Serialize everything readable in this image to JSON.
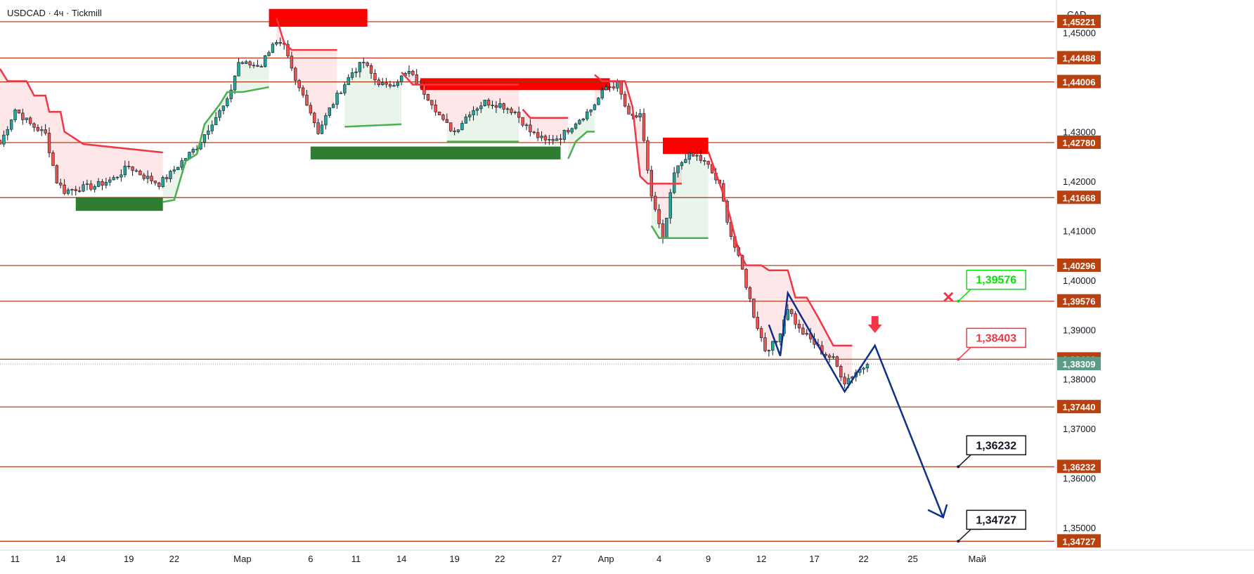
{
  "chart_data": {
    "type": "candlestick",
    "title": "USDCAD · 4ч · Tickmill",
    "currency_label": "CAD",
    "colors": {
      "up": "#26a69a",
      "down": "#ef5350",
      "wick": "#131722",
      "level_line": "#b02e0c",
      "level_label_bg": "#b8410f",
      "supertrend_down": "#f23645",
      "supertrend_up": "#4caf50",
      "zone_red": "#ff0000",
      "zone_green": "#2e7d32",
      "projection": "#0d2e8c",
      "current_price_bg": "#5b9c84",
      "callout_green": "#00e600",
      "callout_red": "#f23645",
      "callout_black": "#131722"
    },
    "y_axis": {
      "range": [
        1.3459,
        1.4566
      ],
      "ticks": [
        "1,35000",
        "1,36000",
        "1,37000",
        "1,38000",
        "1,39000",
        "1,40000",
        "1,41000",
        "1,42000",
        "1,43000",
        "1,44000",
        "1,45000"
      ]
    },
    "x_axis": {
      "ticks": [
        {
          "label": "11",
          "idx": 4
        },
        {
          "label": "14",
          "idx": 16
        },
        {
          "label": "19",
          "idx": 34
        },
        {
          "label": "22",
          "idx": 46
        },
        {
          "label": "Мар",
          "idx": 64
        },
        {
          "label": "6",
          "idx": 82
        },
        {
          "label": "11",
          "idx": 94
        },
        {
          "label": "14",
          "idx": 106
        },
        {
          "label": "19",
          "idx": 120
        },
        {
          "label": "22",
          "idx": 132
        },
        {
          "label": "27",
          "idx": 147
        },
        {
          "label": "Апр",
          "idx": 160
        },
        {
          "label": "4",
          "idx": 174
        },
        {
          "label": "9",
          "idx": 187
        },
        {
          "label": "12",
          "idx": 201
        },
        {
          "label": "17",
          "idx": 215
        },
        {
          "label": "22",
          "idx": 228
        },
        {
          "label": "25",
          "idx": 241
        },
        {
          "label": "Май",
          "idx": 258
        }
      ],
      "visible_bars": [
        0,
        278
      ]
    },
    "levels": [
      {
        "label": "1,45221",
        "value": 1.45221
      },
      {
        "label": "1,44488",
        "value": 1.44488
      },
      {
        "label": "1,44006",
        "value": 1.44006
      },
      {
        "label": "1,42780",
        "value": 1.4278
      },
      {
        "label": "1,41668",
        "value": 1.41668
      },
      {
        "label": "1,40296",
        "value": 1.40296
      },
      {
        "label": "1,39576",
        "value": 1.39576
      },
      {
        "label": "1,38403",
        "value": 1.38403
      },
      {
        "label": "1,37440",
        "value": 1.3744
      },
      {
        "label": "1,36232",
        "value": 1.36232
      },
      {
        "label": "1,34727",
        "value": 1.34727
      }
    ],
    "current_price": {
      "label": "1,38309",
      "value": 1.38309
    },
    "callouts": [
      {
        "label": "1,39576",
        "value": 1.39576,
        "kind": "stop"
      },
      {
        "label": "1,38403",
        "value": 1.38403,
        "kind": "entry"
      },
      {
        "label": "1,36232",
        "value": 1.36232,
        "kind": "target"
      },
      {
        "label": "1,34727",
        "value": 1.34727,
        "kind": "target"
      }
    ],
    "zones": [
      {
        "kind": "resistance",
        "x": [
          71,
          97
        ],
        "y": [
          1.4512,
          1.4548
        ]
      },
      {
        "kind": "resistance",
        "x": [
          111,
          161
        ],
        "y": [
          1.4384,
          1.4408
        ]
      },
      {
        "kind": "resistance",
        "x": [
          175,
          187
        ],
        "y": [
          1.4255,
          1.4288
        ]
      },
      {
        "kind": "support",
        "x": [
          82,
          148
        ],
        "y": [
          1.4244,
          1.427
        ]
      },
      {
        "kind": "support",
        "x": [
          20,
          43
        ],
        "y": [
          1.414,
          1.4168
        ]
      }
    ],
    "projection": {
      "points": [
        [
          203,
          1.391
        ],
        [
          206,
          1.3847
        ],
        [
          208,
          1.3974
        ],
        [
          223,
          1.3775
        ],
        [
          231,
          1.3868
        ],
        [
          249,
          1.3521
        ]
      ],
      "arrow_head": [
        [
          245,
          1.3536
        ],
        [
          249,
          1.3521
        ],
        [
          250,
          1.3547
        ]
      ]
    },
    "anchor_points": [
      [
        0,
        1.4275
      ],
      [
        4,
        1.4345
      ],
      [
        8,
        1.4315
      ],
      [
        12,
        1.4295
      ],
      [
        15,
        1.42
      ],
      [
        17,
        1.418
      ],
      [
        20,
        1.4185
      ],
      [
        25,
        1.419
      ],
      [
        30,
        1.4205
      ],
      [
        34,
        1.423
      ],
      [
        38,
        1.421
      ],
      [
        42,
        1.4195
      ],
      [
        45,
        1.4215
      ],
      [
        48,
        1.424
      ],
      [
        52,
        1.427
      ],
      [
        56,
        1.432
      ],
      [
        60,
        1.436
      ],
      [
        63,
        1.444
      ],
      [
        66,
        1.4435
      ],
      [
        69,
        1.4435
      ],
      [
        72,
        1.448
      ],
      [
        75,
        1.447
      ],
      [
        78,
        1.44
      ],
      [
        81,
        1.436
      ],
      [
        84,
        1.43
      ],
      [
        87,
        1.4345
      ],
      [
        90,
        1.4385
      ],
      [
        93,
        1.442
      ],
      [
        96,
        1.444
      ],
      [
        99,
        1.4405
      ],
      [
        102,
        1.439
      ],
      [
        105,
        1.4405
      ],
      [
        108,
        1.442
      ],
      [
        111,
        1.439
      ],
      [
        114,
        1.436
      ],
      [
        117,
        1.432
      ],
      [
        120,
        1.43
      ],
      [
        124,
        1.434
      ],
      [
        128,
        1.436
      ],
      [
        132,
        1.4355
      ],
      [
        136,
        1.434
      ],
      [
        140,
        1.43
      ],
      [
        144,
        1.428
      ],
      [
        148,
        1.429
      ],
      [
        152,
        1.432
      ],
      [
        156,
        1.4345
      ],
      [
        160,
        1.439
      ],
      [
        163,
        1.4395
      ],
      [
        166,
        1.433
      ],
      [
        169,
        1.433
      ],
      [
        172,
        1.417
      ],
      [
        175,
        1.408
      ],
      [
        178,
        1.4215
      ],
      [
        181,
        1.425
      ],
      [
        184,
        1.425
      ],
      [
        187,
        1.423
      ],
      [
        190,
        1.419
      ],
      [
        193,
        1.409
      ],
      [
        196,
        1.402
      ],
      [
        199,
        1.393
      ],
      [
        202,
        1.386
      ],
      [
        205,
        1.3875
      ],
      [
        208,
        1.3945
      ],
      [
        211,
        1.39
      ],
      [
        214,
        1.388
      ],
      [
        217,
        1.3855
      ],
      [
        220,
        1.384
      ],
      [
        223,
        1.3795
      ],
      [
        226,
        1.3815
      ],
      [
        229,
        1.383
      ]
    ],
    "supertrend": [
      {
        "kind": "down",
        "points": [
          [
            0,
            1.4427
          ],
          [
            2,
            1.4402
          ],
          [
            7,
            1.4402
          ],
          [
            9,
            1.4373
          ],
          [
            12,
            1.4373
          ],
          [
            13,
            1.434
          ],
          [
            16,
            1.434
          ],
          [
            17,
            1.43
          ],
          [
            19,
            1.429
          ],
          [
            22,
            1.4275
          ],
          [
            43,
            1.4258
          ]
        ]
      },
      {
        "kind": "up",
        "points": [
          [
            43,
            1.4158
          ],
          [
            46,
            1.4162
          ],
          [
            49,
            1.424
          ],
          [
            52,
            1.4255
          ],
          [
            54,
            1.4315
          ],
          [
            58,
            1.4355
          ],
          [
            60,
            1.438
          ],
          [
            64,
            1.438
          ],
          [
            71,
            1.439
          ]
        ]
      },
      {
        "kind": "down",
        "points": [
          [
            73,
            1.453
          ],
          [
            75,
            1.448
          ],
          [
            77,
            1.4465
          ],
          [
            89,
            1.4465
          ]
        ]
      },
      {
        "kind": "up",
        "points": [
          [
            91,
            1.431
          ],
          [
            106,
            1.4315
          ]
        ]
      },
      {
        "kind": "down",
        "points": [
          [
            106,
            1.442
          ],
          [
            109,
            1.4395
          ],
          [
            137,
            1.4395
          ]
        ]
      },
      {
        "kind": "up",
        "points": [
          [
            118,
            1.428
          ],
          [
            137,
            1.428
          ]
        ]
      },
      {
        "kind": "down",
        "points": [
          [
            138,
            1.4345
          ],
          [
            140,
            1.4328
          ],
          [
            150,
            1.4328
          ]
        ]
      },
      {
        "kind": "up",
        "points": [
          [
            150,
            1.4245
          ],
          [
            152,
            1.428
          ],
          [
            155,
            1.43
          ],
          [
            157,
            1.43
          ]
        ]
      },
      {
        "kind": "down",
        "points": [
          [
            157,
            1.4415
          ],
          [
            159,
            1.4402
          ],
          [
            165,
            1.4402
          ],
          [
            167,
            1.435
          ],
          [
            169,
            1.421
          ],
          [
            171,
            1.4195
          ],
          [
            180,
            1.4195
          ]
        ]
      },
      {
        "kind": "up",
        "points": [
          [
            172,
            1.411
          ],
          [
            174,
            1.4085
          ],
          [
            187,
            1.4085
          ]
        ]
      },
      {
        "kind": "down",
        "points": [
          [
            187,
            1.426
          ],
          [
            190,
            1.4195
          ],
          [
            192,
            1.415
          ],
          [
            195,
            1.406
          ],
          [
            197,
            1.403
          ],
          [
            201,
            1.403
          ],
          [
            203,
            1.402
          ],
          [
            208,
            1.402
          ],
          [
            210,
            1.3965
          ],
          [
            213,
            1.3965
          ],
          [
            216,
            1.3925
          ],
          [
            220,
            1.3868
          ],
          [
            225,
            1.3868
          ]
        ]
      }
    ],
    "projection_end_index": 253
  }
}
